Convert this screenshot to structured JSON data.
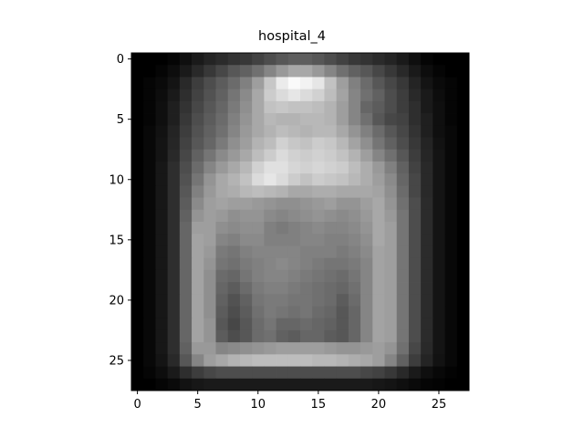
{
  "chart_data": {
    "type": "heatmap",
    "title": "hospital_4",
    "colormap": "gray",
    "value_range": [
      0,
      1
    ],
    "xlim": [
      -0.5,
      27.5
    ],
    "ylim": [
      27.5,
      -0.5
    ],
    "x_ticks": [
      0,
      5,
      10,
      15,
      20,
      25
    ],
    "y_ticks": [
      0,
      5,
      10,
      15,
      20,
      25
    ],
    "xlabel": "",
    "ylabel": "",
    "grid": false,
    "rows": 28,
    "cols": 28,
    "values": [
      [
        0.0,
        0.0,
        0.0,
        0.02,
        0.06,
        0.1,
        0.14,
        0.17,
        0.2,
        0.22,
        0.26,
        0.3,
        0.34,
        0.37,
        0.37,
        0.34,
        0.3,
        0.26,
        0.22,
        0.2,
        0.17,
        0.14,
        0.1,
        0.06,
        0.02,
        0.0,
        0.0,
        0.0
      ],
      [
        0.0,
        0.0,
        0.02,
        0.05,
        0.1,
        0.16,
        0.22,
        0.28,
        0.34,
        0.38,
        0.44,
        0.52,
        0.6,
        0.66,
        0.66,
        0.6,
        0.52,
        0.44,
        0.38,
        0.34,
        0.28,
        0.22,
        0.16,
        0.1,
        0.05,
        0.02,
        0.0,
        0.0
      ],
      [
        0.0,
        0.02,
        0.04,
        0.08,
        0.16,
        0.24,
        0.3,
        0.36,
        0.42,
        0.5,
        0.62,
        0.78,
        0.92,
        0.98,
        0.95,
        0.9,
        0.76,
        0.62,
        0.5,
        0.42,
        0.34,
        0.28,
        0.22,
        0.14,
        0.08,
        0.04,
        0.02,
        0.0
      ],
      [
        0.0,
        0.02,
        0.05,
        0.1,
        0.18,
        0.26,
        0.32,
        0.38,
        0.46,
        0.54,
        0.66,
        0.8,
        0.86,
        0.9,
        0.86,
        0.82,
        0.74,
        0.64,
        0.52,
        0.44,
        0.38,
        0.3,
        0.24,
        0.16,
        0.1,
        0.05,
        0.02,
        0.0
      ],
      [
        0.0,
        0.02,
        0.06,
        0.12,
        0.2,
        0.28,
        0.34,
        0.4,
        0.48,
        0.56,
        0.66,
        0.76,
        0.78,
        0.76,
        0.76,
        0.74,
        0.7,
        0.62,
        0.52,
        0.4,
        0.36,
        0.3,
        0.24,
        0.18,
        0.1,
        0.06,
        0.02,
        0.0
      ],
      [
        0.0,
        0.02,
        0.06,
        0.12,
        0.22,
        0.3,
        0.36,
        0.42,
        0.5,
        0.58,
        0.66,
        0.72,
        0.7,
        0.7,
        0.72,
        0.72,
        0.7,
        0.62,
        0.52,
        0.44,
        0.34,
        0.28,
        0.26,
        0.18,
        0.12,
        0.06,
        0.02,
        0.0
      ],
      [
        0.0,
        0.03,
        0.07,
        0.14,
        0.24,
        0.32,
        0.38,
        0.44,
        0.52,
        0.6,
        0.66,
        0.7,
        0.74,
        0.72,
        0.7,
        0.72,
        0.72,
        0.66,
        0.58,
        0.5,
        0.42,
        0.34,
        0.28,
        0.2,
        0.12,
        0.06,
        0.03,
        0.0
      ],
      [
        0.0,
        0.03,
        0.08,
        0.15,
        0.26,
        0.34,
        0.4,
        0.48,
        0.56,
        0.62,
        0.7,
        0.74,
        0.82,
        0.78,
        0.76,
        0.8,
        0.78,
        0.72,
        0.64,
        0.56,
        0.46,
        0.38,
        0.3,
        0.22,
        0.14,
        0.07,
        0.03,
        0.0
      ],
      [
        0.0,
        0.03,
        0.08,
        0.16,
        0.28,
        0.38,
        0.46,
        0.54,
        0.6,
        0.66,
        0.74,
        0.8,
        0.86,
        0.82,
        0.8,
        0.82,
        0.8,
        0.76,
        0.7,
        0.62,
        0.52,
        0.44,
        0.34,
        0.24,
        0.15,
        0.08,
        0.03,
        0.0
      ],
      [
        0.0,
        0.03,
        0.09,
        0.18,
        0.3,
        0.42,
        0.52,
        0.6,
        0.66,
        0.72,
        0.82,
        0.88,
        0.88,
        0.84,
        0.82,
        0.84,
        0.82,
        0.8,
        0.74,
        0.68,
        0.6,
        0.5,
        0.38,
        0.26,
        0.16,
        0.08,
        0.03,
        0.0
      ],
      [
        0.0,
        0.03,
        0.09,
        0.18,
        0.32,
        0.46,
        0.58,
        0.66,
        0.7,
        0.76,
        0.86,
        0.9,
        0.86,
        0.8,
        0.76,
        0.8,
        0.78,
        0.76,
        0.72,
        0.68,
        0.62,
        0.54,
        0.4,
        0.28,
        0.16,
        0.08,
        0.03,
        0.0
      ],
      [
        0.0,
        0.03,
        0.09,
        0.18,
        0.34,
        0.5,
        0.6,
        0.66,
        0.68,
        0.72,
        0.74,
        0.72,
        0.7,
        0.66,
        0.66,
        0.68,
        0.68,
        0.66,
        0.66,
        0.66,
        0.64,
        0.56,
        0.42,
        0.28,
        0.16,
        0.08,
        0.03,
        0.0
      ],
      [
        0.0,
        0.03,
        0.09,
        0.18,
        0.36,
        0.54,
        0.62,
        0.64,
        0.62,
        0.62,
        0.6,
        0.58,
        0.56,
        0.56,
        0.58,
        0.6,
        0.62,
        0.58,
        0.58,
        0.62,
        0.66,
        0.58,
        0.44,
        0.3,
        0.17,
        0.08,
        0.03,
        0.0
      ],
      [
        0.0,
        0.03,
        0.09,
        0.18,
        0.38,
        0.58,
        0.62,
        0.6,
        0.56,
        0.58,
        0.58,
        0.54,
        0.52,
        0.54,
        0.56,
        0.58,
        0.56,
        0.54,
        0.56,
        0.6,
        0.66,
        0.6,
        0.46,
        0.3,
        0.17,
        0.08,
        0.03,
        0.0
      ],
      [
        0.0,
        0.03,
        0.09,
        0.18,
        0.4,
        0.62,
        0.62,
        0.56,
        0.54,
        0.56,
        0.56,
        0.5,
        0.48,
        0.5,
        0.52,
        0.54,
        0.52,
        0.52,
        0.54,
        0.58,
        0.66,
        0.62,
        0.46,
        0.3,
        0.17,
        0.08,
        0.03,
        0.0
      ],
      [
        0.0,
        0.03,
        0.09,
        0.18,
        0.4,
        0.64,
        0.62,
        0.52,
        0.5,
        0.54,
        0.54,
        0.5,
        0.5,
        0.5,
        0.52,
        0.52,
        0.5,
        0.5,
        0.52,
        0.56,
        0.66,
        0.62,
        0.46,
        0.3,
        0.17,
        0.08,
        0.03,
        0.0
      ],
      [
        0.0,
        0.03,
        0.09,
        0.18,
        0.4,
        0.64,
        0.6,
        0.48,
        0.46,
        0.5,
        0.52,
        0.52,
        0.52,
        0.52,
        0.5,
        0.5,
        0.5,
        0.48,
        0.5,
        0.54,
        0.64,
        0.62,
        0.46,
        0.3,
        0.17,
        0.08,
        0.03,
        0.0
      ],
      [
        0.0,
        0.03,
        0.09,
        0.18,
        0.4,
        0.64,
        0.58,
        0.46,
        0.44,
        0.48,
        0.5,
        0.52,
        0.54,
        0.52,
        0.5,
        0.48,
        0.46,
        0.46,
        0.48,
        0.52,
        0.64,
        0.62,
        0.46,
        0.3,
        0.17,
        0.08,
        0.03,
        0.0
      ],
      [
        0.0,
        0.03,
        0.09,
        0.18,
        0.4,
        0.64,
        0.56,
        0.42,
        0.4,
        0.46,
        0.5,
        0.52,
        0.52,
        0.5,
        0.48,
        0.46,
        0.44,
        0.42,
        0.46,
        0.52,
        0.64,
        0.62,
        0.46,
        0.3,
        0.17,
        0.08,
        0.03,
        0.0
      ],
      [
        0.0,
        0.03,
        0.09,
        0.18,
        0.4,
        0.64,
        0.56,
        0.4,
        0.36,
        0.42,
        0.48,
        0.5,
        0.5,
        0.48,
        0.46,
        0.44,
        0.42,
        0.4,
        0.44,
        0.52,
        0.64,
        0.62,
        0.46,
        0.3,
        0.17,
        0.08,
        0.03,
        0.0
      ],
      [
        0.0,
        0.03,
        0.09,
        0.18,
        0.4,
        0.64,
        0.56,
        0.38,
        0.32,
        0.38,
        0.46,
        0.48,
        0.48,
        0.46,
        0.46,
        0.44,
        0.42,
        0.36,
        0.42,
        0.52,
        0.64,
        0.62,
        0.46,
        0.3,
        0.17,
        0.08,
        0.03,
        0.0
      ],
      [
        0.0,
        0.03,
        0.09,
        0.18,
        0.4,
        0.64,
        0.56,
        0.36,
        0.3,
        0.36,
        0.44,
        0.48,
        0.46,
        0.44,
        0.46,
        0.42,
        0.4,
        0.34,
        0.4,
        0.52,
        0.64,
        0.62,
        0.46,
        0.3,
        0.17,
        0.08,
        0.03,
        0.0
      ],
      [
        0.0,
        0.03,
        0.09,
        0.18,
        0.4,
        0.64,
        0.58,
        0.34,
        0.28,
        0.34,
        0.42,
        0.46,
        0.4,
        0.4,
        0.42,
        0.4,
        0.38,
        0.34,
        0.4,
        0.52,
        0.64,
        0.62,
        0.46,
        0.3,
        0.17,
        0.08,
        0.03,
        0.0
      ],
      [
        0.0,
        0.03,
        0.09,
        0.18,
        0.4,
        0.64,
        0.58,
        0.36,
        0.3,
        0.34,
        0.42,
        0.44,
        0.38,
        0.36,
        0.4,
        0.4,
        0.36,
        0.34,
        0.4,
        0.52,
        0.64,
        0.62,
        0.46,
        0.3,
        0.17,
        0.08,
        0.03,
        0.0
      ],
      [
        0.0,
        0.03,
        0.09,
        0.18,
        0.38,
        0.6,
        0.6,
        0.52,
        0.54,
        0.56,
        0.58,
        0.6,
        0.62,
        0.62,
        0.62,
        0.62,
        0.6,
        0.58,
        0.58,
        0.6,
        0.62,
        0.58,
        0.44,
        0.28,
        0.16,
        0.08,
        0.03,
        0.0
      ],
      [
        0.0,
        0.03,
        0.08,
        0.16,
        0.34,
        0.52,
        0.62,
        0.66,
        0.7,
        0.72,
        0.74,
        0.74,
        0.74,
        0.74,
        0.74,
        0.72,
        0.72,
        0.7,
        0.68,
        0.66,
        0.62,
        0.52,
        0.38,
        0.24,
        0.14,
        0.07,
        0.03,
        0.0
      ],
      [
        0.0,
        0.02,
        0.05,
        0.1,
        0.18,
        0.24,
        0.28,
        0.3,
        0.3,
        0.3,
        0.3,
        0.3,
        0.3,
        0.3,
        0.3,
        0.3,
        0.3,
        0.3,
        0.3,
        0.28,
        0.26,
        0.22,
        0.16,
        0.1,
        0.06,
        0.03,
        0.01,
        0.0
      ],
      [
        0.0,
        0.0,
        0.02,
        0.04,
        0.07,
        0.09,
        0.1,
        0.1,
        0.1,
        0.1,
        0.1,
        0.1,
        0.1,
        0.1,
        0.1,
        0.1,
        0.1,
        0.1,
        0.1,
        0.1,
        0.09,
        0.08,
        0.06,
        0.04,
        0.02,
        0.01,
        0.0,
        0.0
      ]
    ]
  }
}
